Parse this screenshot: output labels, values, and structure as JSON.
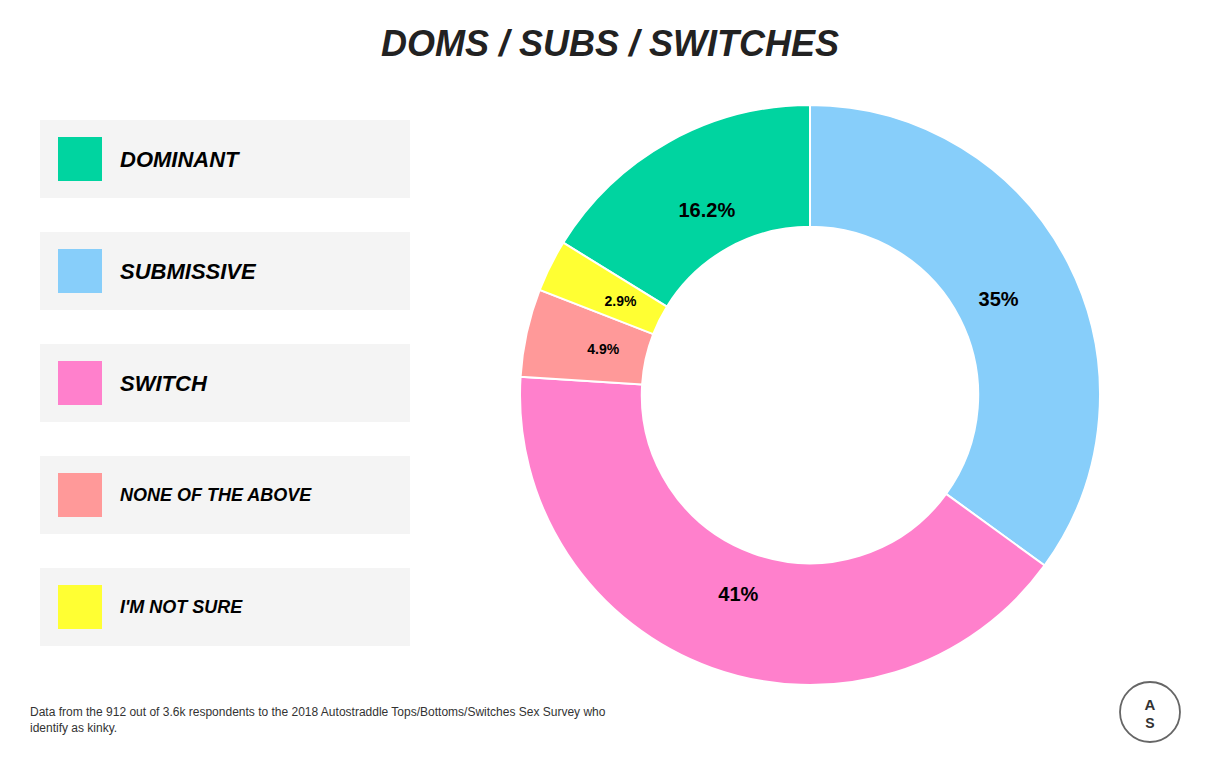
{
  "chart_data": {
    "type": "pie",
    "title": "DOMS / SUBS / SWITCHES",
    "categories": [
      "DOMINANT",
      "SUBMISSIVE",
      "SWITCH",
      "NONE OF THE ABOVE",
      "I'M NOT SURE"
    ],
    "values": [
      16.2,
      35.0,
      41.0,
      4.9,
      2.9
    ],
    "value_labels": [
      "16.2%",
      "35%",
      "41%",
      "4.9%",
      "2.9%"
    ],
    "colors": [
      "#00D4A0",
      "#87CEFA",
      "#FF80CC",
      "#FF9999",
      "#FFFF33"
    ],
    "data_labels": true,
    "legend": "left",
    "annotations": [
      "Data from the 912 out of 3.6k respondents to the 2018 Autostraddle Tops/Bottoms/Switches Sex Survey who\nidentify as kinky.",
      "A",
      "S"
    ]
  }
}
